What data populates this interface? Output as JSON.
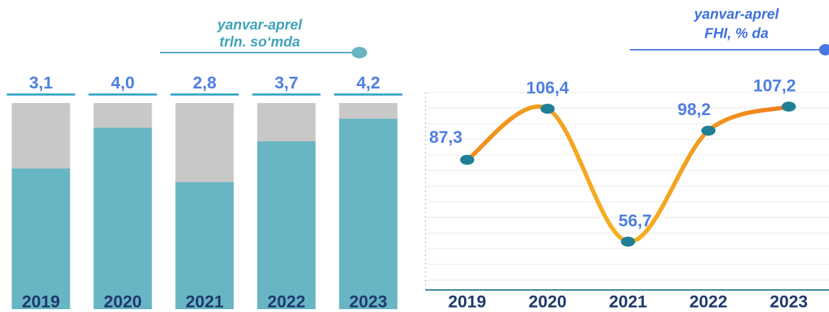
{
  "chart_data": [
    {
      "type": "bar",
      "subtitle": [
        "yanvar-aprel",
        "trln. so‘mda"
      ],
      "categories": [
        "2019",
        "2020",
        "2021",
        "2022",
        "2023"
      ],
      "values": [
        3.1,
        4.0,
        2.8,
        3.7,
        4.2
      ],
      "value_labels": [
        "3,1",
        "4,0",
        "2,8",
        "3,7",
        "4,2"
      ],
      "color": "#68b5c3"
    },
    {
      "type": "line",
      "subtitle": [
        "yanvar-aprel",
        "FHI, % da"
      ],
      "categories": [
        "2019",
        "2020",
        "2021",
        "2022",
        "2023"
      ],
      "values": [
        87.3,
        106.4,
        56.7,
        98.2,
        107.2
      ],
      "value_labels": [
        "87,3",
        "106,4",
        "56,7",
        "98,2",
        "107,2"
      ],
      "color": "#f29a1c"
    }
  ]
}
